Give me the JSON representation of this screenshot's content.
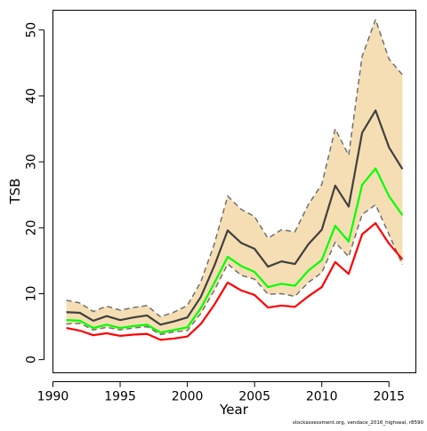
{
  "chart_data": {
    "type": "line",
    "title": "",
    "xlabel": "Year",
    "ylabel": "TSB",
    "xlim": [
      1990,
      2017
    ],
    "ylim": [
      -2,
      53
    ],
    "xticks": [
      1990,
      1995,
      2000,
      2005,
      2010,
      2015
    ],
    "yticks": [
      0,
      10,
      20,
      30,
      40,
      50
    ],
    "grid": false,
    "legend": "none",
    "x": [
      1991,
      1992,
      1993,
      1994,
      1995,
      1996,
      1997,
      1998,
      1999,
      2000,
      2001,
      2002,
      2003,
      2004,
      2005,
      2006,
      2007,
      2008,
      2009,
      2010,
      2011,
      2012,
      2013,
      2014,
      2015,
      2016
    ],
    "band": {
      "color": "#F5DEB3",
      "dash_color": "#707070",
      "upper": [
        9.0,
        8.6,
        7.3,
        8.1,
        7.5,
        7.9,
        8.2,
        6.5,
        7.2,
        8.2,
        11.8,
        17.5,
        24.8,
        22.8,
        21.7,
        18.4,
        19.7,
        19.4,
        23.5,
        26.6,
        35.0,
        31.0,
        46.0,
        51.6,
        45.6,
        43.2
      ],
      "lower": [
        5.4,
        5.5,
        4.5,
        4.9,
        4.5,
        4.8,
        5.0,
        3.8,
        4.2,
        4.4,
        7.0,
        10.5,
        14.5,
        12.8,
        12.2,
        9.9,
        10.0,
        9.6,
        11.7,
        13.2,
        17.8,
        15.6,
        22.0,
        23.5,
        19.0,
        14.4
      ]
    },
    "series": [
      {
        "values": [
          7.2,
          7.1,
          5.9,
          6.6,
          6.0,
          6.4,
          6.7,
          5.3,
          5.8,
          6.4,
          9.5,
          14.2,
          19.6,
          17.7,
          16.8,
          14.1,
          14.9,
          14.5,
          17.5,
          19.7,
          26.4,
          23.2,
          34.4,
          37.8,
          32.2,
          28.9
        ],
        "color": "#404040",
        "width": 2.2
      },
      {
        "values": [
          6.0,
          5.9,
          4.8,
          5.3,
          4.8,
          5.1,
          5.3,
          4.1,
          4.5,
          4.9,
          7.8,
          11.6,
          15.6,
          14.2,
          13.3,
          11.0,
          11.5,
          11.2,
          13.5,
          15.1,
          20.3,
          17.9,
          26.5,
          29.0,
          24.8,
          21.9
        ],
        "color": "#00FF00",
        "width": 2.2
      },
      {
        "values": [
          4.8,
          4.4,
          3.7,
          4.0,
          3.6,
          3.8,
          3.9,
          3.0,
          3.2,
          3.5,
          5.4,
          8.3,
          11.7,
          10.5,
          9.8,
          7.9,
          8.2,
          8.0,
          9.6,
          11.0,
          14.8,
          13.0,
          19.0,
          20.7,
          17.6,
          15.2
        ],
        "color": "#FF0000",
        "width": 2.2
      }
    ]
  },
  "footer_note": "stockassessment.org, vendace_2016_highseal, r8590"
}
